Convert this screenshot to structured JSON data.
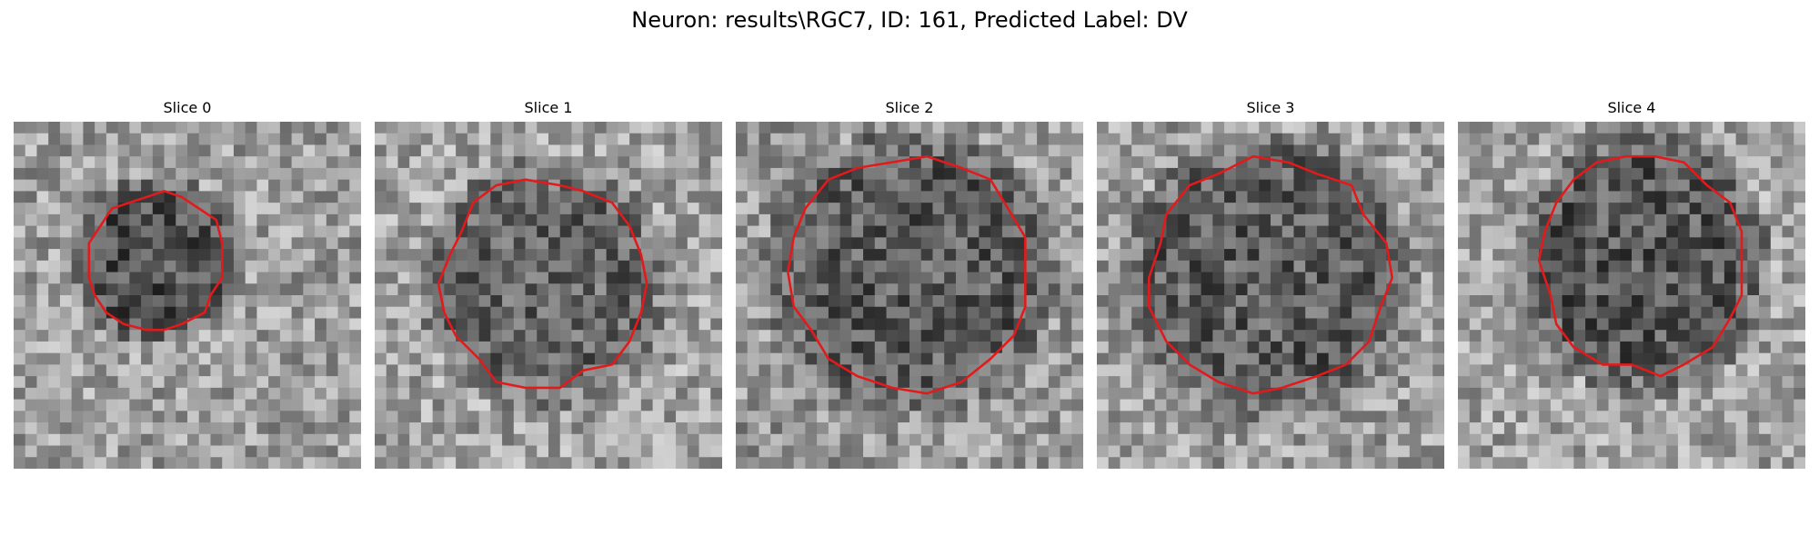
{
  "figure": {
    "title": "Neuron: results\\RGC7, ID: 161, Predicted Label: DV"
  },
  "panels": [
    {
      "title": "Slice 0"
    },
    {
      "title": "Slice 1"
    },
    {
      "title": "Slice 2"
    },
    {
      "title": "Slice 3"
    },
    {
      "title": "Slice 4"
    }
  ],
  "style": {
    "contour_color": "#e31a1c",
    "colormap": "grayscale"
  }
}
